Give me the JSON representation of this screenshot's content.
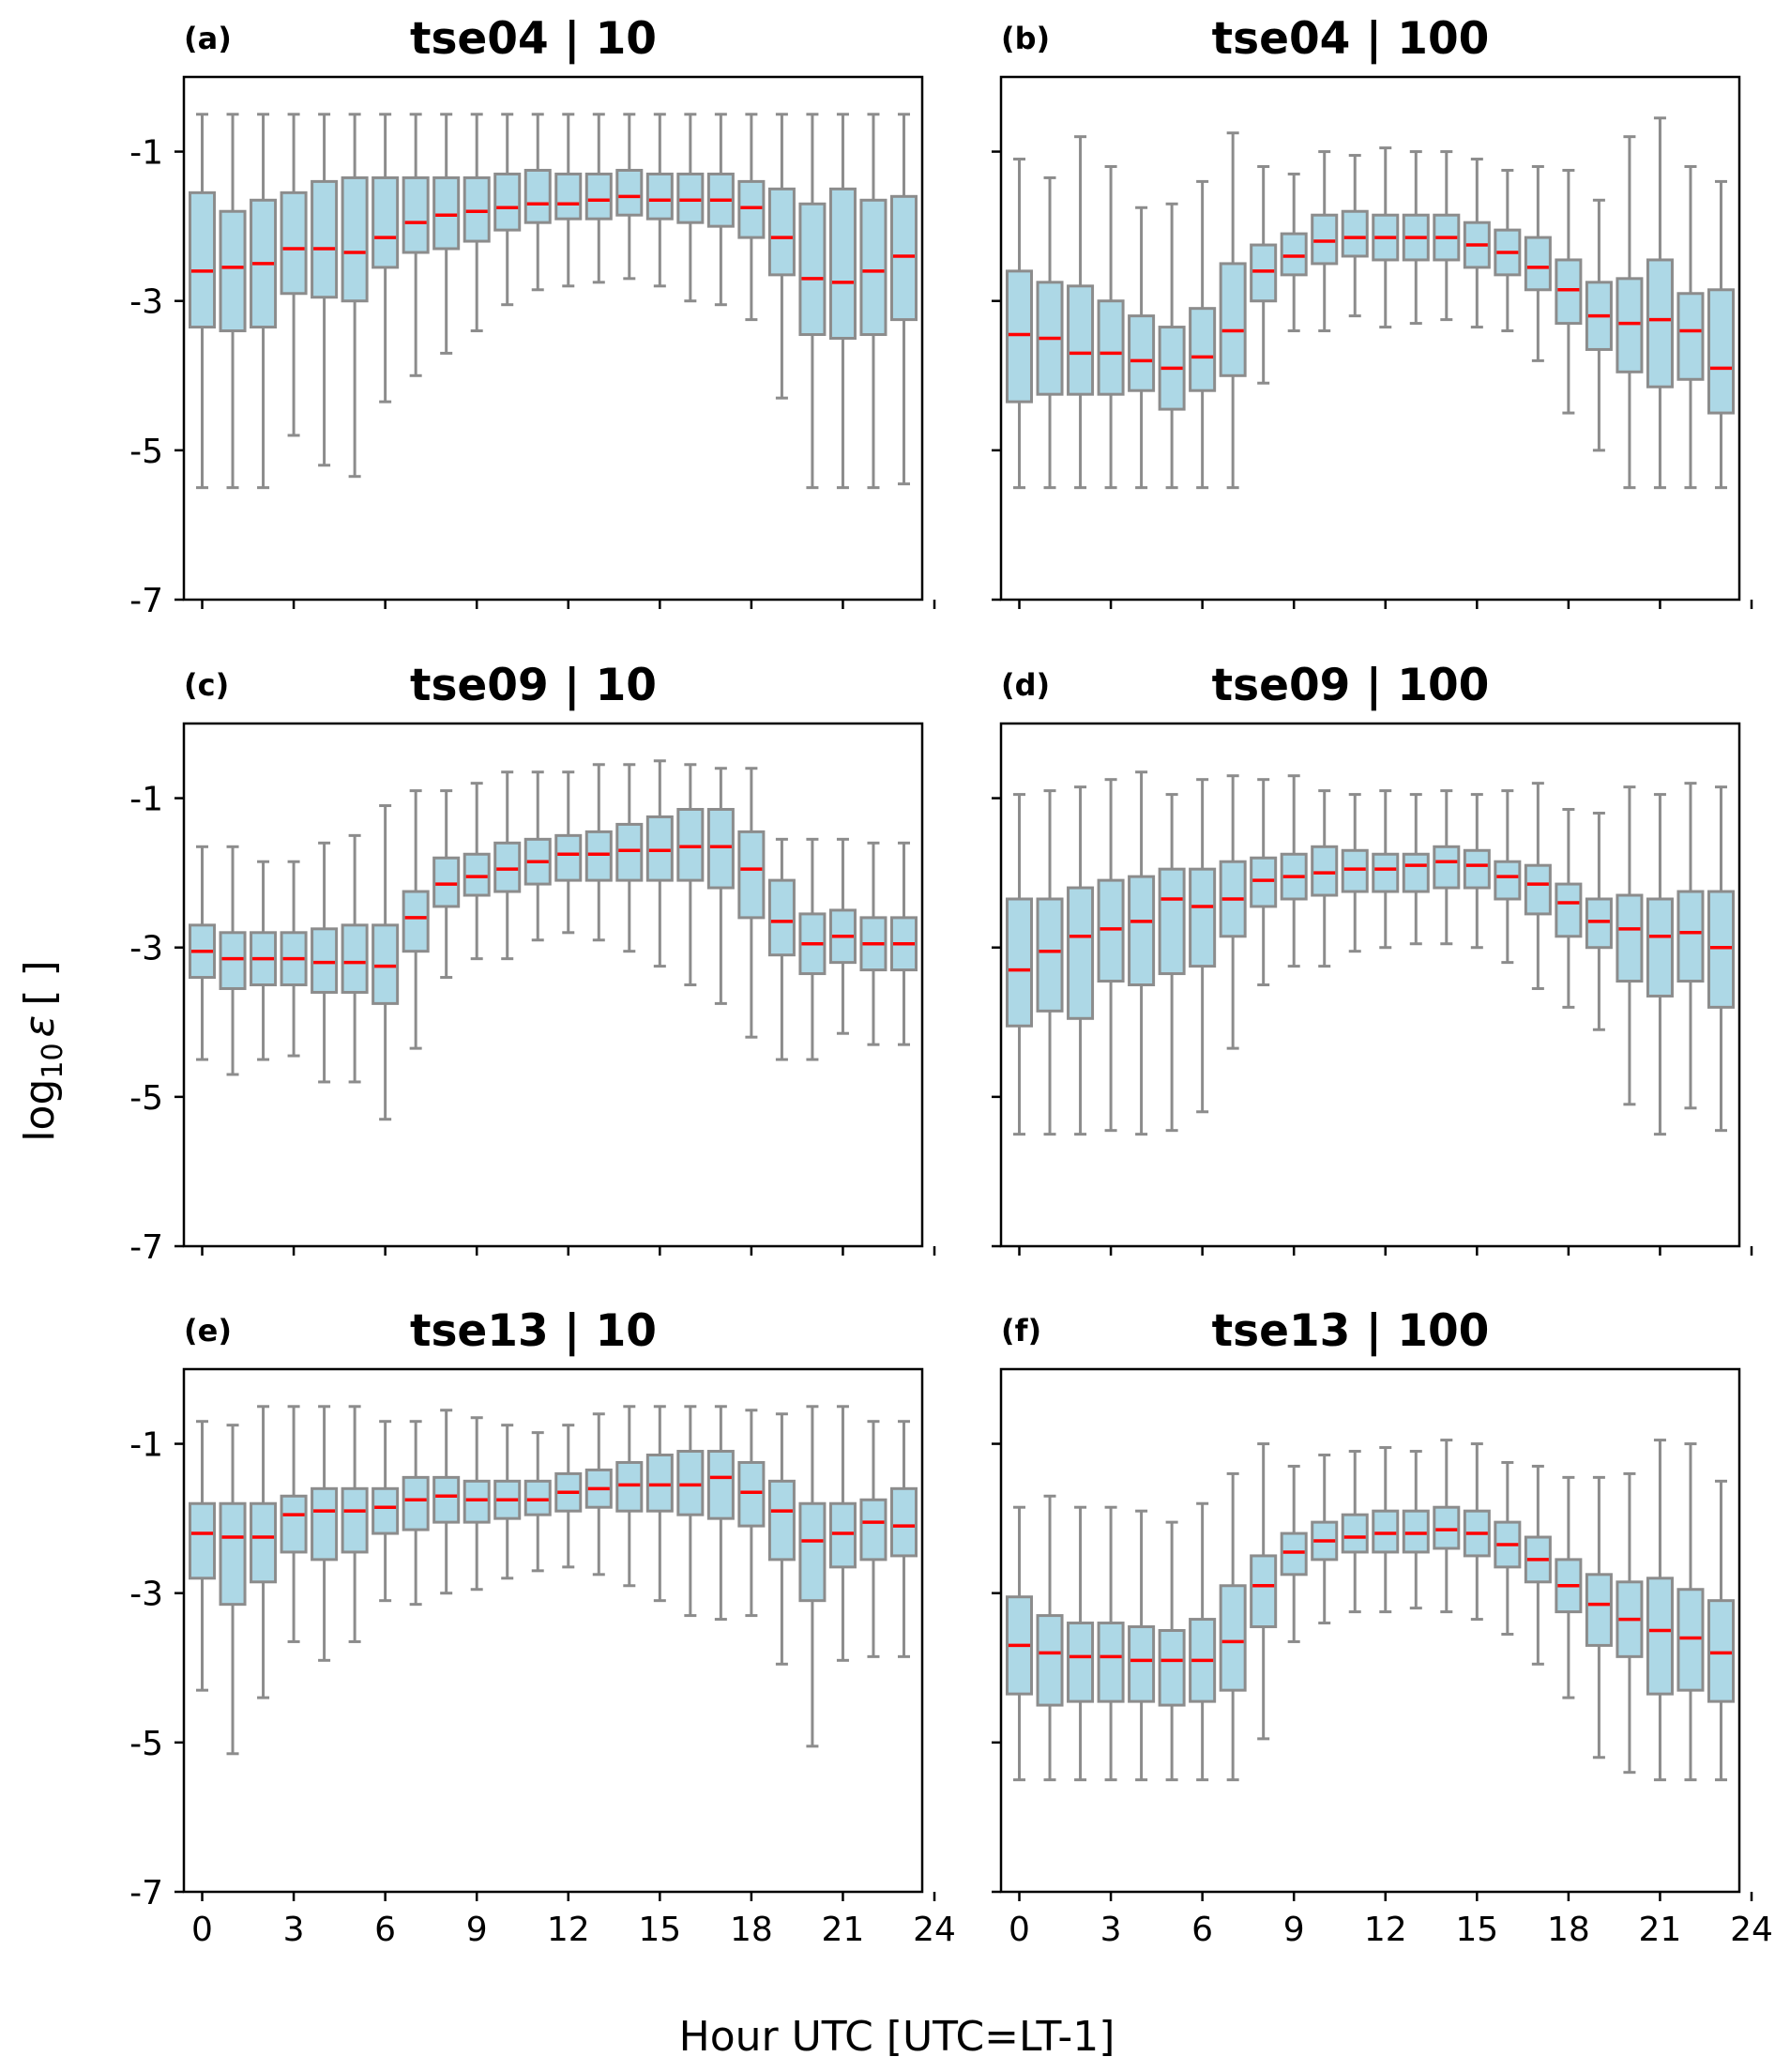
{
  "figure": {
    "ylabel_main": "log",
    "ylabel_sub": "10",
    "ylabel_sym": "ε",
    "ylabel_unit": "[ ]",
    "xlabel": "Hour UTC [UTC=LT-1]"
  },
  "colors": {
    "box_fill": "#add8e6",
    "box_edge": "#8c8c8c",
    "median": "#ff0000",
    "axes": "#000000"
  },
  "chart_data": [
    {
      "type": "box",
      "panel": "(a)",
      "title": "tse04 | 10",
      "ylim": [
        -7,
        0
      ],
      "xlim": [
        -0.6,
        23.6
      ],
      "yticks": [
        -1,
        -3,
        -5,
        -7
      ],
      "yticklabels": [
        "-1",
        "-3",
        "-5",
        "-7"
      ],
      "xticks": [
        0,
        3,
        6,
        9,
        12,
        15,
        18,
        21,
        24
      ],
      "xticklabels": [
        "0",
        "3",
        "6",
        "9",
        "12",
        "15",
        "18",
        "21",
        "24"
      ],
      "show_xticklabels": false,
      "show_yticklabels": true,
      "hours": [
        0,
        1,
        2,
        3,
        4,
        5,
        6,
        7,
        8,
        9,
        10,
        11,
        12,
        13,
        14,
        15,
        16,
        17,
        18,
        19,
        20,
        21,
        22,
        23
      ],
      "whisker_low": [
        -5.5,
        -5.5,
        -5.5,
        -4.8,
        -5.2,
        -5.35,
        -4.35,
        -4.0,
        -3.7,
        -3.4,
        -3.05,
        -2.85,
        -2.8,
        -2.75,
        -2.7,
        -2.8,
        -3.0,
        -3.05,
        -3.25,
        -4.3,
        -5.5,
        -5.5,
        -5.5,
        -5.45
      ],
      "q1": [
        -3.35,
        -3.4,
        -3.35,
        -2.9,
        -2.95,
        -3.0,
        -2.55,
        -2.35,
        -2.3,
        -2.2,
        -2.05,
        -1.95,
        -1.9,
        -1.9,
        -1.85,
        -1.9,
        -1.95,
        -2.0,
        -2.15,
        -2.65,
        -3.45,
        -3.5,
        -3.45,
        -3.25
      ],
      "median": [
        -2.6,
        -2.55,
        -2.5,
        -2.3,
        -2.3,
        -2.35,
        -2.15,
        -1.95,
        -1.85,
        -1.8,
        -1.75,
        -1.7,
        -1.7,
        -1.65,
        -1.6,
        -1.65,
        -1.65,
        -1.65,
        -1.75,
        -2.15,
        -2.7,
        -2.75,
        -2.6,
        -2.4
      ],
      "q3": [
        -1.55,
        -1.8,
        -1.65,
        -1.55,
        -1.4,
        -1.35,
        -1.35,
        -1.35,
        -1.35,
        -1.35,
        -1.3,
        -1.25,
        -1.3,
        -1.3,
        -1.25,
        -1.3,
        -1.3,
        -1.3,
        -1.4,
        -1.5,
        -1.7,
        -1.5,
        -1.65,
        -1.6
      ],
      "whisker_high": [
        -0.5,
        -0.5,
        -0.5,
        -0.5,
        -0.5,
        -0.5,
        -0.5,
        -0.5,
        -0.5,
        -0.5,
        -0.5,
        -0.5,
        -0.5,
        -0.5,
        -0.5,
        -0.5,
        -0.5,
        -0.5,
        -0.5,
        -0.5,
        -0.5,
        -0.5,
        -0.5,
        -0.5
      ]
    },
    {
      "type": "box",
      "panel": "(b)",
      "title": "tse04 | 100",
      "ylim": [
        -7,
        0
      ],
      "xlim": [
        -0.6,
        23.6
      ],
      "yticks": [
        -1,
        -3,
        -5,
        -7
      ],
      "yticklabels": [
        "-1",
        "-3",
        "-5",
        "-7"
      ],
      "xticks": [
        0,
        3,
        6,
        9,
        12,
        15,
        18,
        21,
        24
      ],
      "xticklabels": [
        "0",
        "3",
        "6",
        "9",
        "12",
        "15",
        "18",
        "21",
        "24"
      ],
      "show_xticklabels": false,
      "show_yticklabels": false,
      "hours": [
        0,
        1,
        2,
        3,
        4,
        5,
        6,
        7,
        8,
        9,
        10,
        11,
        12,
        13,
        14,
        15,
        16,
        17,
        18,
        19,
        20,
        21,
        22,
        23
      ],
      "whisker_low": [
        -5.5,
        -5.5,
        -5.5,
        -5.5,
        -5.5,
        -5.5,
        -5.5,
        -5.5,
        -4.1,
        -3.4,
        -3.4,
        -3.2,
        -3.35,
        -3.3,
        -3.25,
        -3.35,
        -3.4,
        -3.8,
        -4.5,
        -5.0,
        -5.5,
        -5.5,
        -5.5,
        -5.5
      ],
      "q1": [
        -4.35,
        -4.25,
        -4.25,
        -4.25,
        -4.2,
        -4.45,
        -4.2,
        -4.0,
        -3.0,
        -2.65,
        -2.5,
        -2.4,
        -2.45,
        -2.45,
        -2.45,
        -2.55,
        -2.65,
        -2.85,
        -3.3,
        -3.65,
        -3.95,
        -4.15,
        -4.05,
        -4.5
      ],
      "median": [
        -3.45,
        -3.5,
        -3.7,
        -3.7,
        -3.8,
        -3.9,
        -3.75,
        -3.4,
        -2.6,
        -2.4,
        -2.2,
        -2.15,
        -2.15,
        -2.15,
        -2.15,
        -2.25,
        -2.35,
        -2.55,
        -2.85,
        -3.2,
        -3.3,
        -3.25,
        -3.4,
        -3.9
      ],
      "q3": [
        -2.6,
        -2.75,
        -2.8,
        -3.0,
        -3.2,
        -3.35,
        -3.1,
        -2.5,
        -2.25,
        -2.1,
        -1.85,
        -1.8,
        -1.85,
        -1.85,
        -1.85,
        -1.95,
        -2.05,
        -2.15,
        -2.45,
        -2.75,
        -2.7,
        -2.45,
        -2.9,
        -2.85
      ],
      "whisker_high": [
        -1.1,
        -1.35,
        -0.8,
        -1.2,
        -1.75,
        -1.7,
        -1.4,
        -0.75,
        -1.2,
        -1.3,
        -1.0,
        -1.05,
        -0.95,
        -1.0,
        -1.0,
        -1.1,
        -1.25,
        -1.2,
        -1.25,
        -1.65,
        -0.8,
        -0.55,
        -1.2,
        -1.4
      ]
    },
    {
      "type": "box",
      "panel": "(c)",
      "title": "tse09 | 10",
      "ylim": [
        -7,
        0
      ],
      "xlim": [
        -0.6,
        23.6
      ],
      "yticks": [
        -1,
        -3,
        -5,
        -7
      ],
      "yticklabels": [
        "-1",
        "-3",
        "-5",
        "-7"
      ],
      "xticks": [
        0,
        3,
        6,
        9,
        12,
        15,
        18,
        21,
        24
      ],
      "xticklabels": [
        "0",
        "3",
        "6",
        "9",
        "12",
        "15",
        "18",
        "21",
        "24"
      ],
      "show_xticklabels": false,
      "show_yticklabels": true,
      "hours": [
        0,
        1,
        2,
        3,
        4,
        5,
        6,
        7,
        8,
        9,
        10,
        11,
        12,
        13,
        14,
        15,
        16,
        17,
        18,
        19,
        20,
        21,
        22,
        23
      ],
      "whisker_low": [
        -4.5,
        -4.7,
        -4.5,
        -4.45,
        -4.8,
        -4.8,
        -5.3,
        -4.35,
        -3.4,
        -3.15,
        -3.15,
        -2.9,
        -2.8,
        -2.9,
        -3.05,
        -3.25,
        -3.5,
        -3.75,
        -4.2,
        -4.5,
        -4.5,
        -4.15,
        -4.3,
        -4.3
      ],
      "q1": [
        -3.4,
        -3.55,
        -3.5,
        -3.5,
        -3.6,
        -3.6,
        -3.75,
        -3.05,
        -2.45,
        -2.3,
        -2.25,
        -2.15,
        -2.1,
        -2.1,
        -2.1,
        -2.1,
        -2.1,
        -2.2,
        -2.6,
        -3.1,
        -3.35,
        -3.2,
        -3.3,
        -3.3
      ],
      "median": [
        -3.05,
        -3.15,
        -3.15,
        -3.15,
        -3.2,
        -3.2,
        -3.25,
        -2.6,
        -2.15,
        -2.05,
        -1.95,
        -1.85,
        -1.75,
        -1.75,
        -1.7,
        -1.7,
        -1.65,
        -1.65,
        -1.95,
        -2.65,
        -2.95,
        -2.85,
        -2.95,
        -2.95
      ],
      "q3": [
        -2.7,
        -2.8,
        -2.8,
        -2.8,
        -2.75,
        -2.7,
        -2.7,
        -2.25,
        -1.8,
        -1.75,
        -1.6,
        -1.55,
        -1.5,
        -1.45,
        -1.35,
        -1.25,
        -1.15,
        -1.15,
        -1.45,
        -2.1,
        -2.55,
        -2.5,
        -2.6,
        -2.6
      ],
      "whisker_high": [
        -1.65,
        -1.65,
        -1.85,
        -1.85,
        -1.6,
        -1.5,
        -1.1,
        -0.9,
        -0.9,
        -0.8,
        -0.65,
        -0.65,
        -0.65,
        -0.55,
        -0.55,
        -0.5,
        -0.55,
        -0.6,
        -0.6,
        -1.55,
        -1.55,
        -1.55,
        -1.6,
        -1.6
      ]
    },
    {
      "type": "box",
      "panel": "(d)",
      "title": "tse09 | 100",
      "ylim": [
        -7,
        0
      ],
      "xlim": [
        -0.6,
        23.6
      ],
      "yticks": [
        -1,
        -3,
        -5,
        -7
      ],
      "yticklabels": [
        "-1",
        "-3",
        "-5",
        "-7"
      ],
      "xticks": [
        0,
        3,
        6,
        9,
        12,
        15,
        18,
        21,
        24
      ],
      "xticklabels": [
        "0",
        "3",
        "6",
        "9",
        "12",
        "15",
        "18",
        "21",
        "24"
      ],
      "show_xticklabels": false,
      "show_yticklabels": false,
      "hours": [
        0,
        1,
        2,
        3,
        4,
        5,
        6,
        7,
        8,
        9,
        10,
        11,
        12,
        13,
        14,
        15,
        16,
        17,
        18,
        19,
        20,
        21,
        22,
        23
      ],
      "whisker_low": [
        -5.5,
        -5.5,
        -5.5,
        -5.45,
        -5.5,
        -5.45,
        -5.2,
        -4.35,
        -3.5,
        -3.25,
        -3.25,
        -3.05,
        -3.0,
        -2.95,
        -2.95,
        -3.0,
        -3.2,
        -3.55,
        -3.8,
        -4.1,
        -5.1,
        -5.5,
        -5.15,
        -5.45
      ],
      "q1": [
        -4.05,
        -3.85,
        -3.95,
        -3.45,
        -3.5,
        -3.35,
        -3.25,
        -2.85,
        -2.45,
        -2.35,
        -2.3,
        -2.25,
        -2.25,
        -2.25,
        -2.2,
        -2.2,
        -2.35,
        -2.55,
        -2.85,
        -3.0,
        -3.45,
        -3.65,
        -3.45,
        -3.8
      ],
      "median": [
        -3.3,
        -3.05,
        -2.85,
        -2.75,
        -2.65,
        -2.35,
        -2.45,
        -2.35,
        -2.1,
        -2.05,
        -2.0,
        -1.95,
        -1.95,
        -1.9,
        -1.85,
        -1.9,
        -2.05,
        -2.15,
        -2.4,
        -2.65,
        -2.75,
        -2.85,
        -2.8,
        -3.0
      ],
      "q3": [
        -2.35,
        -2.35,
        -2.2,
        -2.1,
        -2.05,
        -1.95,
        -1.95,
        -1.85,
        -1.8,
        -1.75,
        -1.65,
        -1.7,
        -1.75,
        -1.75,
        -1.65,
        -1.7,
        -1.85,
        -1.9,
        -2.15,
        -2.35,
        -2.3,
        -2.35,
        -2.25,
        -2.25
      ],
      "whisker_high": [
        -0.95,
        -0.9,
        -0.85,
        -0.75,
        -0.65,
        -0.95,
        -0.75,
        -0.7,
        -0.75,
        -0.7,
        -0.9,
        -0.95,
        -0.9,
        -0.95,
        -0.9,
        -0.95,
        -0.9,
        -0.8,
        -1.15,
        -1.2,
        -0.85,
        -0.95,
        -0.8,
        -0.85
      ]
    },
    {
      "type": "box",
      "panel": "(e)",
      "title": "tse13 | 10",
      "ylim": [
        -7,
        0
      ],
      "xlim": [
        -0.6,
        23.6
      ],
      "yticks": [
        -1,
        -3,
        -5,
        -7
      ],
      "yticklabels": [
        "-1",
        "-3",
        "-5",
        "-7"
      ],
      "xticks": [
        0,
        3,
        6,
        9,
        12,
        15,
        18,
        21,
        24
      ],
      "xticklabels": [
        "0",
        "3",
        "6",
        "9",
        "12",
        "15",
        "18",
        "21",
        "24"
      ],
      "show_xticklabels": true,
      "show_yticklabels": true,
      "hours": [
        0,
        1,
        2,
        3,
        4,
        5,
        6,
        7,
        8,
        9,
        10,
        11,
        12,
        13,
        14,
        15,
        16,
        17,
        18,
        19,
        20,
        21,
        22,
        23
      ],
      "whisker_low": [
        -4.3,
        -5.15,
        -4.4,
        -3.65,
        -3.9,
        -3.65,
        -3.1,
        -3.15,
        -3.0,
        -2.95,
        -2.8,
        -2.7,
        -2.65,
        -2.75,
        -2.9,
        -3.1,
        -3.3,
        -3.35,
        -3.3,
        -3.95,
        -5.05,
        -3.9,
        -3.85,
        -3.85
      ],
      "q1": [
        -2.8,
        -3.15,
        -2.85,
        -2.45,
        -2.55,
        -2.45,
        -2.2,
        -2.15,
        -2.05,
        -2.05,
        -2.0,
        -1.95,
        -1.9,
        -1.85,
        -1.9,
        -1.9,
        -1.95,
        -2.0,
        -2.1,
        -2.55,
        -3.1,
        -2.65,
        -2.55,
        -2.5
      ],
      "median": [
        -2.2,
        -2.25,
        -2.25,
        -1.95,
        -1.9,
        -1.9,
        -1.85,
        -1.75,
        -1.7,
        -1.75,
        -1.75,
        -1.75,
        -1.65,
        -1.6,
        -1.55,
        -1.55,
        -1.55,
        -1.45,
        -1.65,
        -1.9,
        -2.3,
        -2.2,
        -2.05,
        -2.1
      ],
      "q3": [
        -1.8,
        -1.8,
        -1.8,
        -1.7,
        -1.6,
        -1.6,
        -1.6,
        -1.45,
        -1.45,
        -1.5,
        -1.5,
        -1.5,
        -1.4,
        -1.35,
        -1.25,
        -1.15,
        -1.1,
        -1.1,
        -1.25,
        -1.5,
        -1.8,
        -1.8,
        -1.75,
        -1.6
      ],
      "whisker_high": [
        -0.7,
        -0.75,
        -0.5,
        -0.5,
        -0.5,
        -0.5,
        -0.7,
        -0.7,
        -0.55,
        -0.65,
        -0.75,
        -0.85,
        -0.75,
        -0.6,
        -0.5,
        -0.5,
        -0.5,
        -0.5,
        -0.55,
        -0.6,
        -0.5,
        -0.5,
        -0.7,
        -0.7
      ]
    },
    {
      "type": "box",
      "panel": "(f)",
      "title": "tse13 | 100",
      "ylim": [
        -7,
        0
      ],
      "xlim": [
        -0.6,
        23.6
      ],
      "yticks": [
        -1,
        -3,
        -5,
        -7
      ],
      "yticklabels": [
        "-1",
        "-3",
        "-5",
        "-7"
      ],
      "xticks": [
        0,
        3,
        6,
        9,
        12,
        15,
        18,
        21,
        24
      ],
      "xticklabels": [
        "0",
        "3",
        "6",
        "9",
        "12",
        "15",
        "18",
        "21",
        "24"
      ],
      "show_xticklabels": true,
      "show_yticklabels": false,
      "hours": [
        0,
        1,
        2,
        3,
        4,
        5,
        6,
        7,
        8,
        9,
        10,
        11,
        12,
        13,
        14,
        15,
        16,
        17,
        18,
        19,
        20,
        21,
        22,
        23
      ],
      "whisker_low": [
        -5.5,
        -5.5,
        -5.5,
        -5.5,
        -5.5,
        -5.5,
        -5.5,
        -5.5,
        -4.95,
        -3.65,
        -3.4,
        -3.25,
        -3.25,
        -3.2,
        -3.25,
        -3.35,
        -3.55,
        -3.95,
        -4.4,
        -5.2,
        -5.4,
        -5.5,
        -5.5,
        -5.5
      ],
      "q1": [
        -4.35,
        -4.5,
        -4.45,
        -4.45,
        -4.45,
        -4.5,
        -4.45,
        -4.3,
        -3.45,
        -2.75,
        -2.55,
        -2.45,
        -2.45,
        -2.45,
        -2.4,
        -2.5,
        -2.65,
        -2.85,
        -3.25,
        -3.7,
        -3.85,
        -4.35,
        -4.3,
        -4.45
      ],
      "median": [
        -3.7,
        -3.8,
        -3.85,
        -3.85,
        -3.9,
        -3.9,
        -3.9,
        -3.65,
        -2.9,
        -2.45,
        -2.3,
        -2.25,
        -2.2,
        -2.2,
        -2.15,
        -2.2,
        -2.35,
        -2.55,
        -2.9,
        -3.15,
        -3.35,
        -3.5,
        -3.6,
        -3.8
      ],
      "q3": [
        -3.05,
        -3.3,
        -3.4,
        -3.4,
        -3.45,
        -3.5,
        -3.35,
        -2.9,
        -2.5,
        -2.2,
        -2.05,
        -1.95,
        -1.9,
        -1.9,
        -1.85,
        -1.9,
        -2.05,
        -2.25,
        -2.55,
        -2.75,
        -2.85,
        -2.8,
        -2.95,
        -3.1
      ],
      "whisker_high": [
        -1.85,
        -1.7,
        -1.85,
        -1.85,
        -1.9,
        -2.05,
        -1.8,
        -1.4,
        -1.0,
        -1.3,
        -1.15,
        -1.1,
        -1.05,
        -1.1,
        -0.95,
        -1.0,
        -1.25,
        -1.3,
        -1.45,
        -1.45,
        -1.4,
        -0.95,
        -1.0,
        -1.5
      ]
    }
  ]
}
